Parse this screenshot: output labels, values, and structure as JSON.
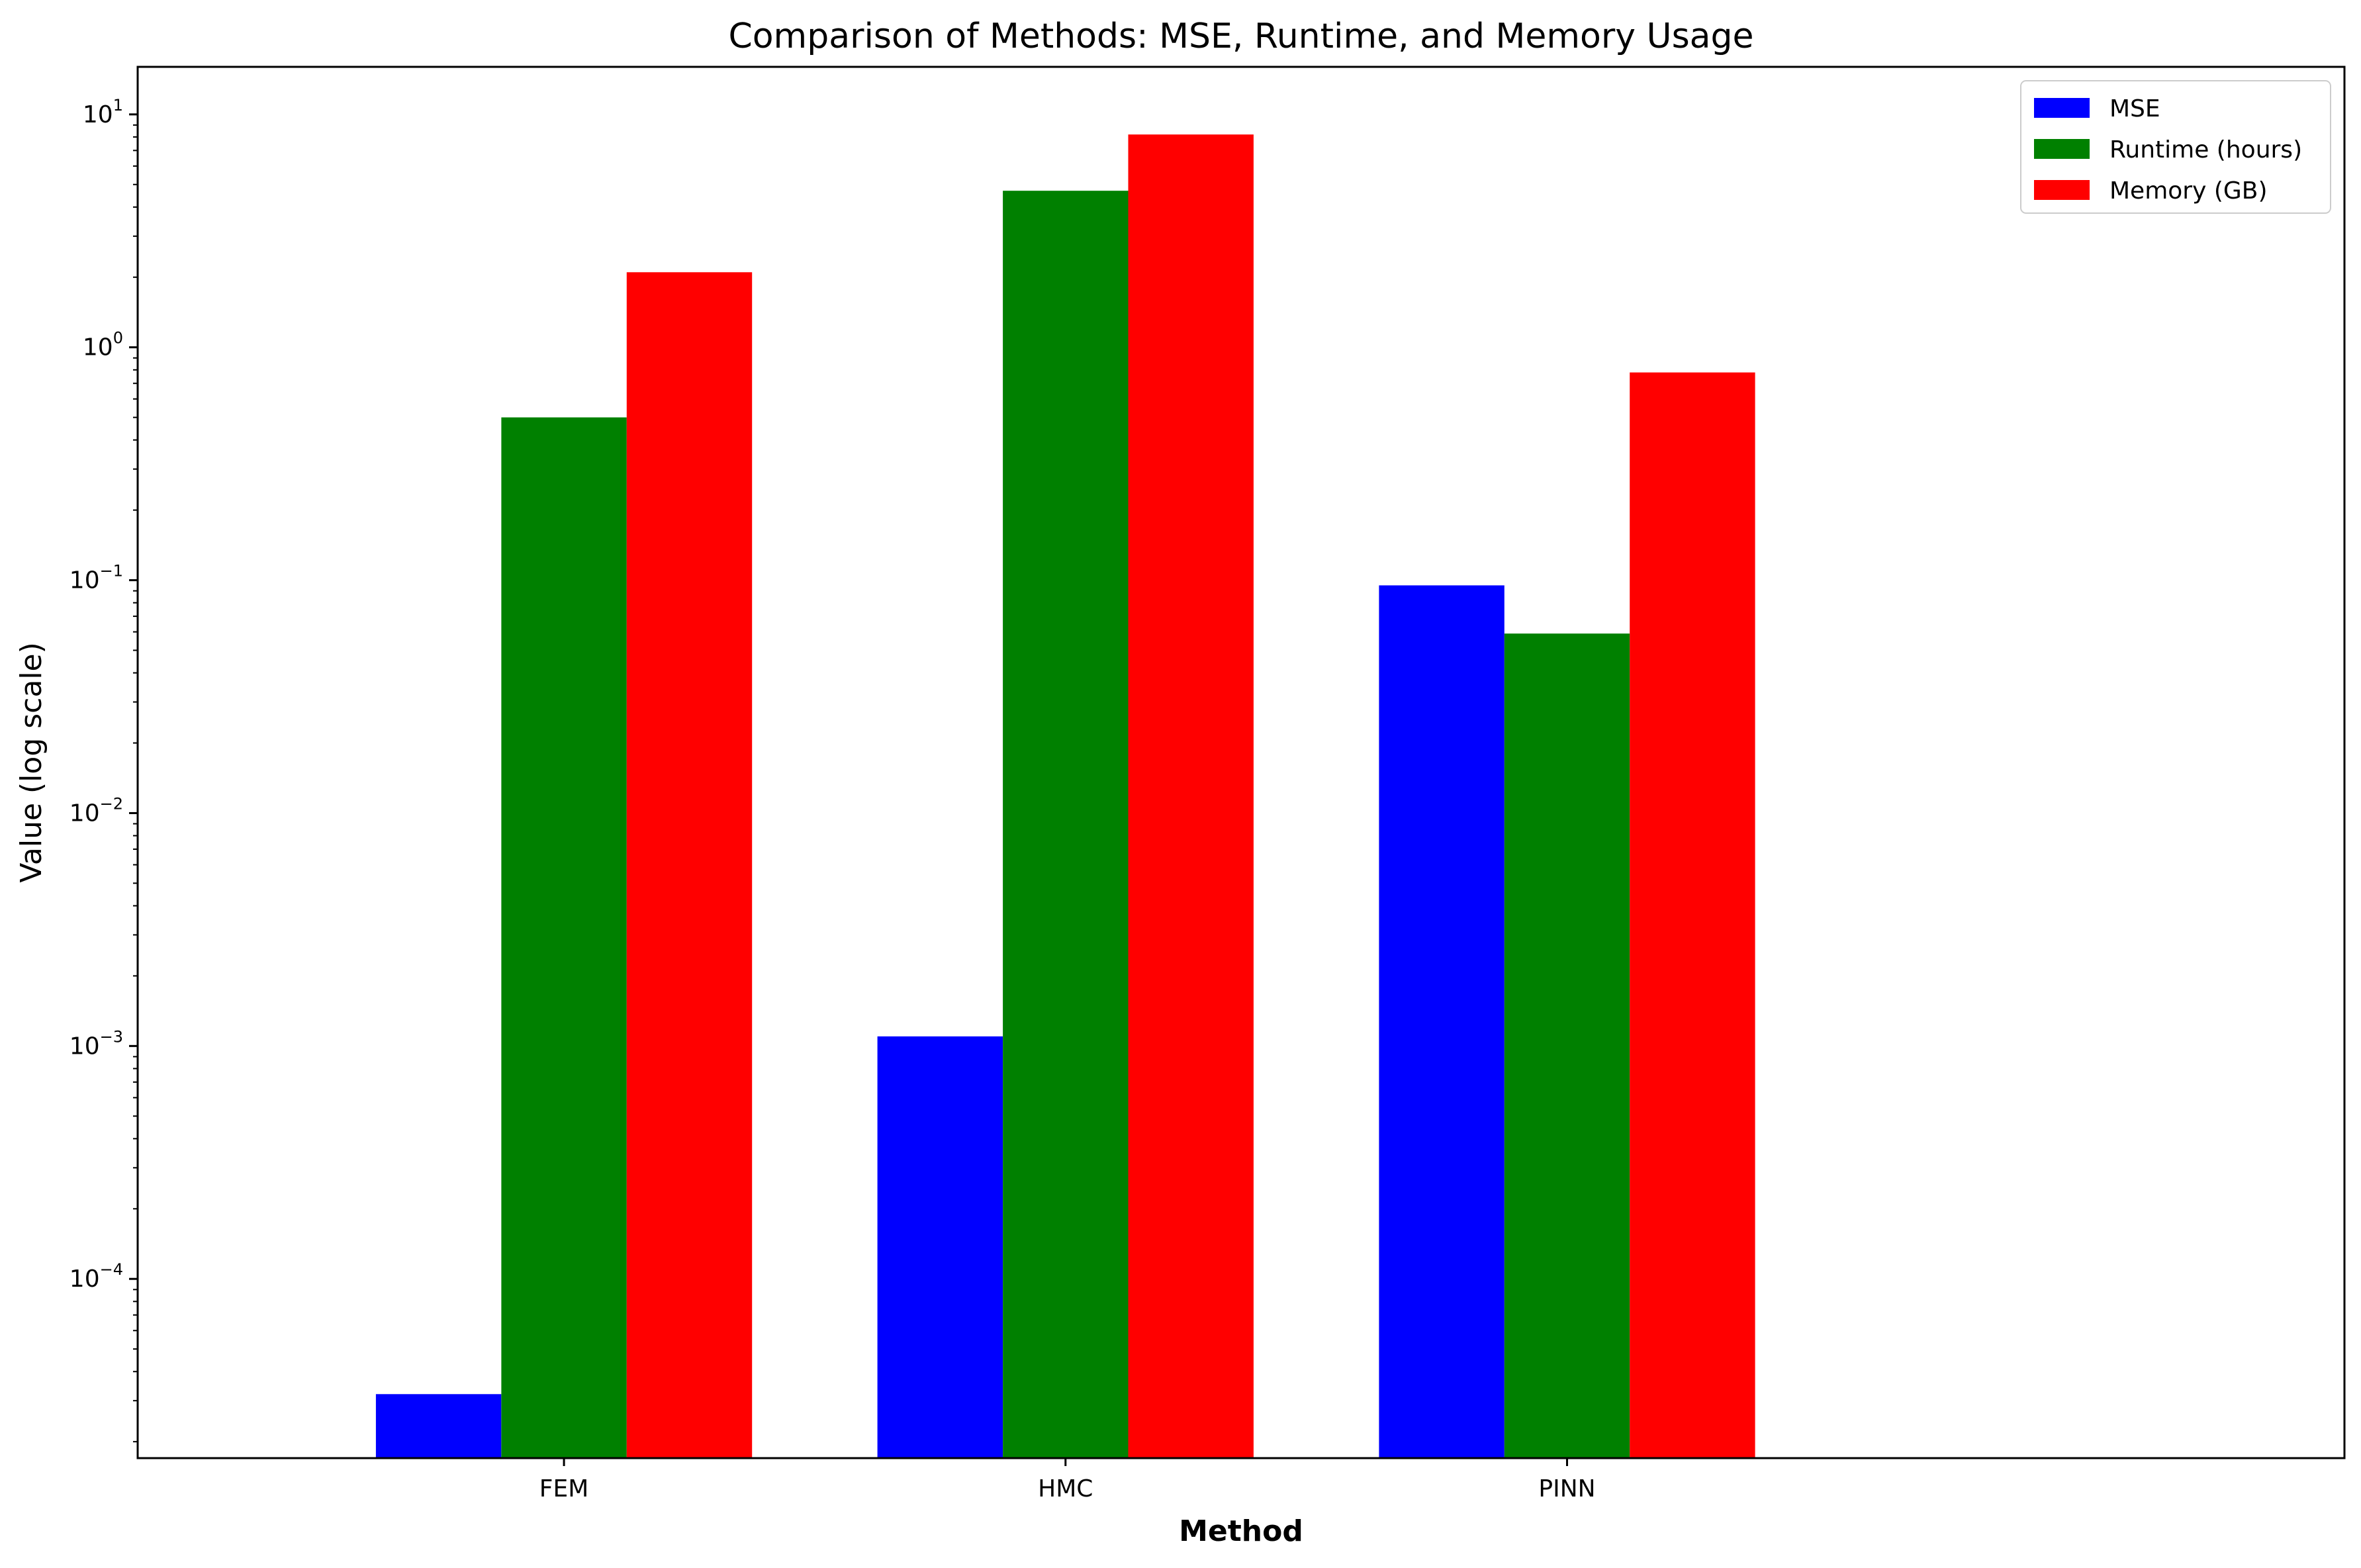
{
  "chart_data": {
    "type": "bar",
    "title": "Comparison of Methods: MSE, Runtime, and Memory Usage",
    "xlabel": "Method",
    "ylabel": "Value (log scale)",
    "yscale": "log",
    "ylim": [
      1.7e-05,
      16
    ],
    "categories": [
      "FEM",
      "HMC",
      "PINN"
    ],
    "series": [
      {
        "name": "MSE",
        "color": "#0000ff",
        "values": [
          3.2e-05,
          0.0011,
          0.095
        ]
      },
      {
        "name": "Runtime (hours)",
        "color": "#008000",
        "values": [
          0.5,
          4.7,
          0.059
        ]
      },
      {
        "name": "Memory (GB)",
        "color": "#ff0000",
        "values": [
          2.1,
          8.2,
          0.78
        ]
      }
    ],
    "yticks": [
      {
        "base": "10",
        "exp": "−4",
        "value": 0.0001
      },
      {
        "base": "10",
        "exp": "−3",
        "value": 0.001
      },
      {
        "base": "10",
        "exp": "−2",
        "value": 0.01
      },
      {
        "base": "10",
        "exp": "−1",
        "value": 0.1
      },
      {
        "base": "10",
        "exp": "0",
        "value": 1
      },
      {
        "base": "10",
        "exp": "1",
        "value": 10
      }
    ],
    "legend": "top-right",
    "grid": false
  }
}
